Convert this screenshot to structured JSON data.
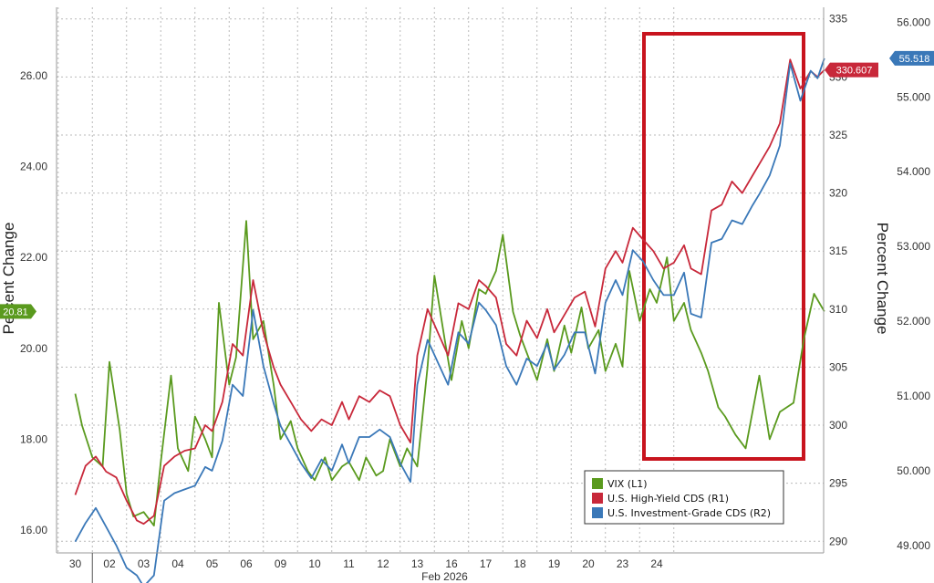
{
  "chart_data": {
    "type": "line",
    "x_labels": [
      "30",
      "02",
      "03",
      "04",
      "05",
      "06",
      "09",
      "10",
      "11",
      "12",
      "13",
      "16",
      "17",
      "18",
      "19",
      "20",
      "23",
      "24"
    ],
    "x_month_label": "Feb 2026",
    "left_axis": {
      "title": "Percent Change",
      "ticks": [
        "16.00",
        "18.00",
        "20.00",
        "22.00",
        "24.00",
        "26.00"
      ],
      "range": [
        15.5,
        27.5
      ]
    },
    "right1_axis": {
      "ticks": [
        "290",
        "295",
        "300",
        "305",
        "310",
        "315",
        "320",
        "325",
        "330",
        "335"
      ],
      "range": [
        289,
        336
      ]
    },
    "right2_axis": {
      "title": "Percent Change",
      "ticks": [
        "49.000",
        "50.000",
        "51.000",
        "52.000",
        "53.000",
        "54.000",
        "55.000",
        "56.000"
      ],
      "range": [
        48.9,
        56.2
      ]
    },
    "grid": true,
    "legend": {
      "placement": "bottom-right",
      "entries": [
        {
          "label": "VIX (L1)",
          "color": "#5a9a1e"
        },
        {
          "label": "U.S. High-Yield CDS (R1)",
          "color": "#c8283a"
        },
        {
          "label": "U.S. Investment-Grade CDS (R2)",
          "color": "#3a78b8"
        }
      ]
    },
    "last_values": [
      {
        "series": "VIX (L1)",
        "label": "20.81",
        "color": "#5a9a1e"
      },
      {
        "series": "U.S. High-Yield CDS (R1)",
        "label": "330.607",
        "color": "#c8283a"
      },
      {
        "series": "U.S. Investment-Grade CDS (R2)",
        "label": "55.518",
        "color": "#3a78b8"
      }
    ],
    "highlight_box_color": "#c8141e",
    "series": [
      {
        "name": "VIX (L1)",
        "axis": "left",
        "color": "#5a9a1e",
        "x": [
          0,
          0.2,
          0.5,
          0.8,
          1.0,
          1.3,
          1.5,
          1.7,
          2.0,
          2.3,
          2.5,
          2.8,
          3.0,
          3.3,
          3.5,
          3.8,
          4.0,
          4.2,
          4.5,
          4.7,
          5.0,
          5.2,
          5.5,
          5.8,
          6.0,
          6.3,
          6.5,
          6.8,
          7.0,
          7.3,
          7.5,
          7.8,
          8.0,
          8.3,
          8.5,
          8.8,
          9.0,
          9.2,
          9.5,
          9.7,
          10.0,
          10.3,
          10.5,
          10.8,
          11.0,
          11.3,
          11.5,
          11.8,
          12.0,
          12.3,
          12.5,
          12.8,
          13.0,
          13.3,
          13.5,
          13.8,
          14.0,
          14.3,
          14.5,
          14.8,
          15.0,
          15.3,
          15.5,
          15.8,
          16.0,
          16.2,
          16.5,
          16.8,
          17.0,
          17.3,
          17.5,
          17.8,
          18.0,
          18.3,
          18.5,
          18.8,
          19.0,
          19.3,
          19.6,
          20.0,
          20.3,
          20.6,
          21.0,
          21.3,
          21.6,
          21.9
        ],
        "values": [
          19.0,
          18.3,
          17.6,
          17.4,
          19.7,
          18.2,
          16.8,
          16.3,
          16.4,
          16.1,
          17.5,
          19.4,
          17.8,
          17.3,
          18.5,
          18.0,
          17.6,
          21.0,
          19.2,
          19.8,
          22.8,
          20.2,
          20.6,
          19.2,
          18.0,
          18.4,
          17.8,
          17.3,
          17.1,
          17.6,
          17.1,
          17.4,
          17.5,
          17.1,
          17.6,
          17.2,
          17.3,
          18.0,
          17.4,
          17.8,
          17.4,
          19.6,
          21.6,
          20.2,
          19.3,
          20.6,
          20.0,
          21.3,
          21.2,
          21.7,
          22.5,
          20.8,
          20.3,
          19.7,
          19.3,
          20.2,
          19.5,
          20.5,
          19.9,
          20.9,
          20.0,
          20.4,
          19.5,
          20.1,
          19.6,
          21.7,
          20.6,
          21.3,
          21.0,
          22.0,
          20.6,
          21.0,
          20.4,
          19.9,
          19.5,
          18.7,
          18.5,
          18.1,
          17.8,
          19.4,
          18.0,
          18.6,
          18.8,
          20.2,
          21.2,
          20.81
        ]
      },
      {
        "name": "U.S. High-Yield CDS (R1)",
        "axis": "right1",
        "color": "#c8283a",
        "x": [
          0,
          0.3,
          0.6,
          0.9,
          1.2,
          1.5,
          1.8,
          2.0,
          2.3,
          2.6,
          2.9,
          3.2,
          3.5,
          3.8,
          4.0,
          4.3,
          4.6,
          4.9,
          5.2,
          5.5,
          5.8,
          6.0,
          6.3,
          6.6,
          6.9,
          7.2,
          7.5,
          7.8,
          8.0,
          8.3,
          8.6,
          8.9,
          9.2,
          9.5,
          9.8,
          10.0,
          10.3,
          10.6,
          10.9,
          11.2,
          11.5,
          11.8,
          12.0,
          12.3,
          12.6,
          12.9,
          13.2,
          13.5,
          13.8,
          14.0,
          14.3,
          14.6,
          14.9,
          15.2,
          15.5,
          15.8,
          16.0,
          16.3,
          16.6,
          16.9,
          17.2,
          17.5,
          17.8,
          18.0,
          18.3,
          18.6,
          18.9,
          19.2,
          19.5,
          19.8,
          20.0,
          20.3,
          20.6,
          20.9,
          21.2,
          21.5,
          21.7,
          21.9
        ],
        "values": [
          294.0,
          296.5,
          297.3,
          296.0,
          295.5,
          293.5,
          291.8,
          291.5,
          292.2,
          296.5,
          297.3,
          297.8,
          298.0,
          300.0,
          299.5,
          302.0,
          307.0,
          306.0,
          312.5,
          308.0,
          305.0,
          303.5,
          302.0,
          300.5,
          299.5,
          300.5,
          300.0,
          302.0,
          300.5,
          302.5,
          302.0,
          303.0,
          302.5,
          300.0,
          298.5,
          306.0,
          310.0,
          308.0,
          306.0,
          310.5,
          310.0,
          312.5,
          312.0,
          311.0,
          307.0,
          306.0,
          309.0,
          307.5,
          310.0,
          308.0,
          309.5,
          311.0,
          311.5,
          308.5,
          313.5,
          315.0,
          314.0,
          317.0,
          316.0,
          315.0,
          313.5,
          314.0,
          315.5,
          313.5,
          313.0,
          318.5,
          319.0,
          321.0,
          320.0,
          321.5,
          322.5,
          324.0,
          326.0,
          331.5,
          329.0,
          330.5,
          330.0,
          330.607
        ]
      },
      {
        "name": "U.S. Investment-Grade CDS (R2)",
        "axis": "right2",
        "color": "#3a78b8",
        "x": [
          0,
          0.3,
          0.6,
          0.9,
          1.2,
          1.5,
          1.8,
          2.0,
          2.3,
          2.6,
          2.9,
          3.2,
          3.5,
          3.8,
          4.0,
          4.3,
          4.6,
          4.9,
          5.2,
          5.5,
          5.8,
          6.0,
          6.3,
          6.6,
          6.9,
          7.2,
          7.5,
          7.8,
          8.0,
          8.3,
          8.6,
          8.9,
          9.2,
          9.5,
          9.8,
          10.0,
          10.3,
          10.6,
          10.9,
          11.2,
          11.5,
          11.8,
          12.0,
          12.3,
          12.6,
          12.9,
          13.2,
          13.5,
          13.8,
          14.0,
          14.3,
          14.6,
          14.9,
          15.2,
          15.5,
          15.8,
          16.0,
          16.3,
          16.6,
          16.9,
          17.2,
          17.5,
          17.8,
          18.0,
          18.3,
          18.6,
          18.9,
          19.2,
          19.5,
          19.8,
          20.0,
          20.3,
          20.6,
          20.9,
          21.2,
          21.5,
          21.7,
          21.9
        ],
        "values": [
          49.05,
          49.3,
          49.5,
          49.25,
          49.0,
          48.7,
          48.6,
          48.45,
          48.6,
          49.6,
          49.7,
          49.75,
          49.8,
          50.05,
          50.0,
          50.4,
          51.15,
          51.0,
          52.15,
          51.4,
          50.9,
          50.6,
          50.35,
          50.1,
          49.9,
          50.15,
          50.0,
          50.35,
          50.1,
          50.45,
          50.45,
          50.55,
          50.45,
          50.1,
          49.85,
          51.15,
          51.75,
          51.45,
          51.15,
          51.85,
          51.7,
          52.25,
          52.15,
          51.95,
          51.4,
          51.15,
          51.5,
          51.4,
          51.7,
          51.35,
          51.55,
          51.85,
          51.85,
          51.3,
          52.25,
          52.55,
          52.35,
          52.95,
          52.8,
          52.55,
          52.35,
          52.35,
          52.65,
          52.1,
          52.05,
          53.05,
          53.1,
          53.35,
          53.3,
          53.55,
          53.7,
          53.95,
          54.35,
          55.45,
          54.95,
          55.35,
          55.25,
          55.518
        ]
      }
    ]
  }
}
